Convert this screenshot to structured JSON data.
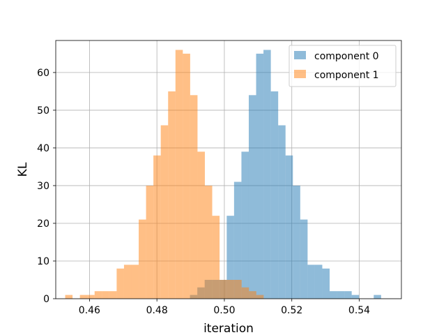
{
  "chart_data": {
    "type": "histogram",
    "xlabel": "iteration",
    "ylabel": "KL",
    "xlim": [
      0.45,
      0.5525
    ],
    "ylim": [
      0,
      68.5
    ],
    "grid": true,
    "legend_position": "top-right",
    "x_ticks": [
      {
        "value": 0.46,
        "label": "0.46"
      },
      {
        "value": 0.48,
        "label": "0.48"
      },
      {
        "value": 0.5,
        "label": "0.50"
      },
      {
        "value": 0.52,
        "label": "0.52"
      },
      {
        "value": 0.54,
        "label": "0.54"
      }
    ],
    "y_ticks": [
      {
        "value": 0,
        "label": "0"
      },
      {
        "value": 10,
        "label": "10"
      },
      {
        "value": 20,
        "label": "20"
      },
      {
        "value": 30,
        "label": "30"
      },
      {
        "value": 40,
        "label": "40"
      },
      {
        "value": 50,
        "label": "50"
      },
      {
        "value": 60,
        "label": "60"
      }
    ],
    "series": [
      {
        "name": "component 0",
        "color": "#1f77b4",
        "alpha": 0.5,
        "bin_start": 0.4898,
        "bin_width": 0.00218,
        "counts": [
          1,
          3,
          5,
          5,
          5,
          22,
          31,
          39,
          54,
          65,
          66,
          55,
          46,
          38,
          30,
          21,
          9,
          9,
          8,
          2,
          2,
          2,
          1,
          0,
          0,
          1
        ]
      },
      {
        "name": "component 1",
        "color": "#ff7f0e",
        "alpha": 0.5,
        "bin_start": 0.4528,
        "bin_width": 0.00218,
        "counts": [
          1,
          0,
          1,
          1,
          2,
          2,
          2,
          8,
          9,
          9,
          21,
          30,
          38,
          46,
          55,
          66,
          65,
          54,
          39,
          30,
          22,
          5,
          5,
          5,
          3,
          2,
          1
        ]
      }
    ]
  }
}
